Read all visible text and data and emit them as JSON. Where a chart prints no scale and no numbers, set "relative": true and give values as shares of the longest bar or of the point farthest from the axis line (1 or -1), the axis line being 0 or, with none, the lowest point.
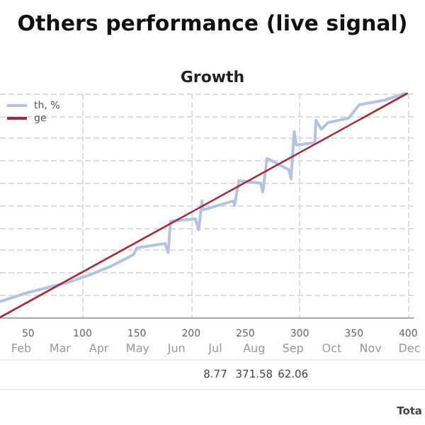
{
  "chart_data": {
    "type": "line",
    "title": "Others performance (live signal)",
    "subtitle": "Growth",
    "relative": true,
    "xlim": [
      24,
      405
    ],
    "xticks": [
      50,
      100,
      150,
      200,
      250,
      300,
      350,
      400
    ],
    "grid": true,
    "legend": "top left",
    "marker": "none",
    "series": [
      {
        "name": "th, %",
        "color": "#b4c3e2",
        "x": [
          24,
          49,
          86,
          107,
          127,
          147,
          150,
          176,
          179,
          181,
          204,
          207,
          210,
          211,
          239,
          240,
          244,
          264,
          266,
          270,
          290,
          292,
          295,
          297,
          314,
          315,
          320,
          326,
          345,
          355,
          378,
          397
        ],
        "values": [
          0.07,
          0.11,
          0.155,
          0.19,
          0.23,
          0.28,
          0.31,
          0.33,
          0.29,
          0.43,
          0.44,
          0.39,
          0.52,
          0.48,
          0.52,
          0.5,
          0.61,
          0.6,
          0.56,
          0.71,
          0.66,
          0.62,
          0.83,
          0.77,
          0.78,
          0.88,
          0.84,
          0.87,
          0.89,
          0.95,
          0.97,
          1.0
        ]
      },
      {
        "name": "ge",
        "color": "#a52a3a",
        "x": [
          24,
          399
        ],
        "values": [
          0,
          1
        ]
      }
    ],
    "annotations": [
      "Feb",
      "Mar",
      "Apr",
      "May",
      "Jun",
      "Jul",
      "Aug",
      "Sep",
      "Oct",
      "Nov",
      "Dec",
      "8.77",
      "371.58",
      "62.06",
      "Tota"
    ]
  }
}
